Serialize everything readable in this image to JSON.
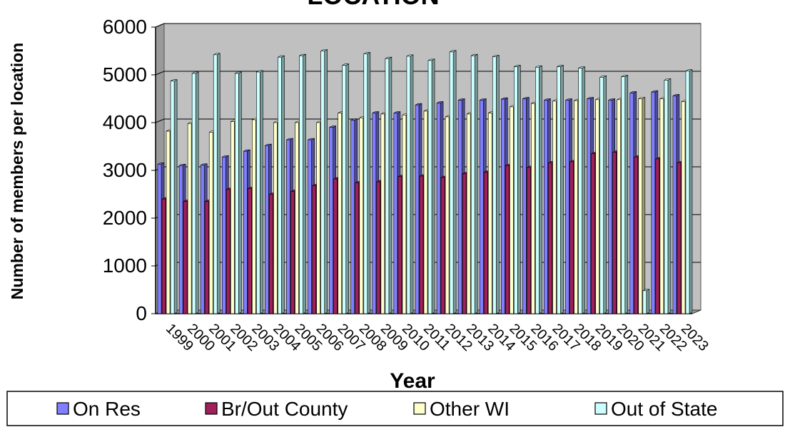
{
  "chart_data": {
    "type": "bar",
    "title": "LOCATION",
    "xlabel": "Year",
    "ylabel": "Number of members per location",
    "ylim": [
      0,
      6000
    ],
    "yticks": [
      0,
      1000,
      2000,
      3000,
      4000,
      5000,
      6000
    ],
    "grid": true,
    "legend_position": "bottom",
    "categories": [
      "1999",
      "2000",
      "2001",
      "2002",
      "2003",
      "2004",
      "2005",
      "2006",
      "2007",
      "2008",
      "2009",
      "2010",
      "2011",
      "2012",
      "2013",
      "2014",
      "2015",
      "2016",
      "2017",
      "2018",
      "2019",
      "2020",
      "2021",
      "2022",
      "2023"
    ],
    "series": [
      {
        "name": "On Res",
        "color": "#8080ff",
        "values": [
          3130,
          3100,
          3110,
          3280,
          3400,
          3520,
          3640,
          3640,
          3900,
          4050,
          4200,
          4200,
          4370,
          4410,
          4470,
          4470,
          4490,
          4500,
          4470,
          4470,
          4500,
          4470,
          4620,
          4640,
          4560
        ]
      },
      {
        "name": "Br/Out County",
        "color": "#a0205c",
        "values": [
          2400,
          2350,
          2350,
          2600,
          2620,
          2500,
          2560,
          2680,
          2820,
          2740,
          2760,
          2870,
          2880,
          2850,
          2930,
          2960,
          3100,
          3060,
          3160,
          3180,
          3350,
          3380,
          3280,
          3240,
          3160
        ]
      },
      {
        "name": "Other WI",
        "color": "#ffffcc",
        "values": [
          3820,
          3980,
          3800,
          4020,
          4060,
          4000,
          4000,
          4000,
          4200,
          4100,
          4180,
          4160,
          4240,
          4120,
          4180,
          4200,
          4330,
          4400,
          4450,
          4460,
          4480,
          4480,
          4500,
          4500,
          4440
        ]
      },
      {
        "name": "Out of State",
        "color": "#ccffff",
        "values": [
          4870,
          5030,
          5420,
          5030,
          5060,
          5370,
          5400,
          5500,
          5200,
          5440,
          5340,
          5390,
          5300,
          5480,
          5400,
          5380,
          5170,
          5160,
          5170,
          5140,
          4950,
          4960,
          480,
          4890,
          5080
        ]
      }
    ]
  }
}
